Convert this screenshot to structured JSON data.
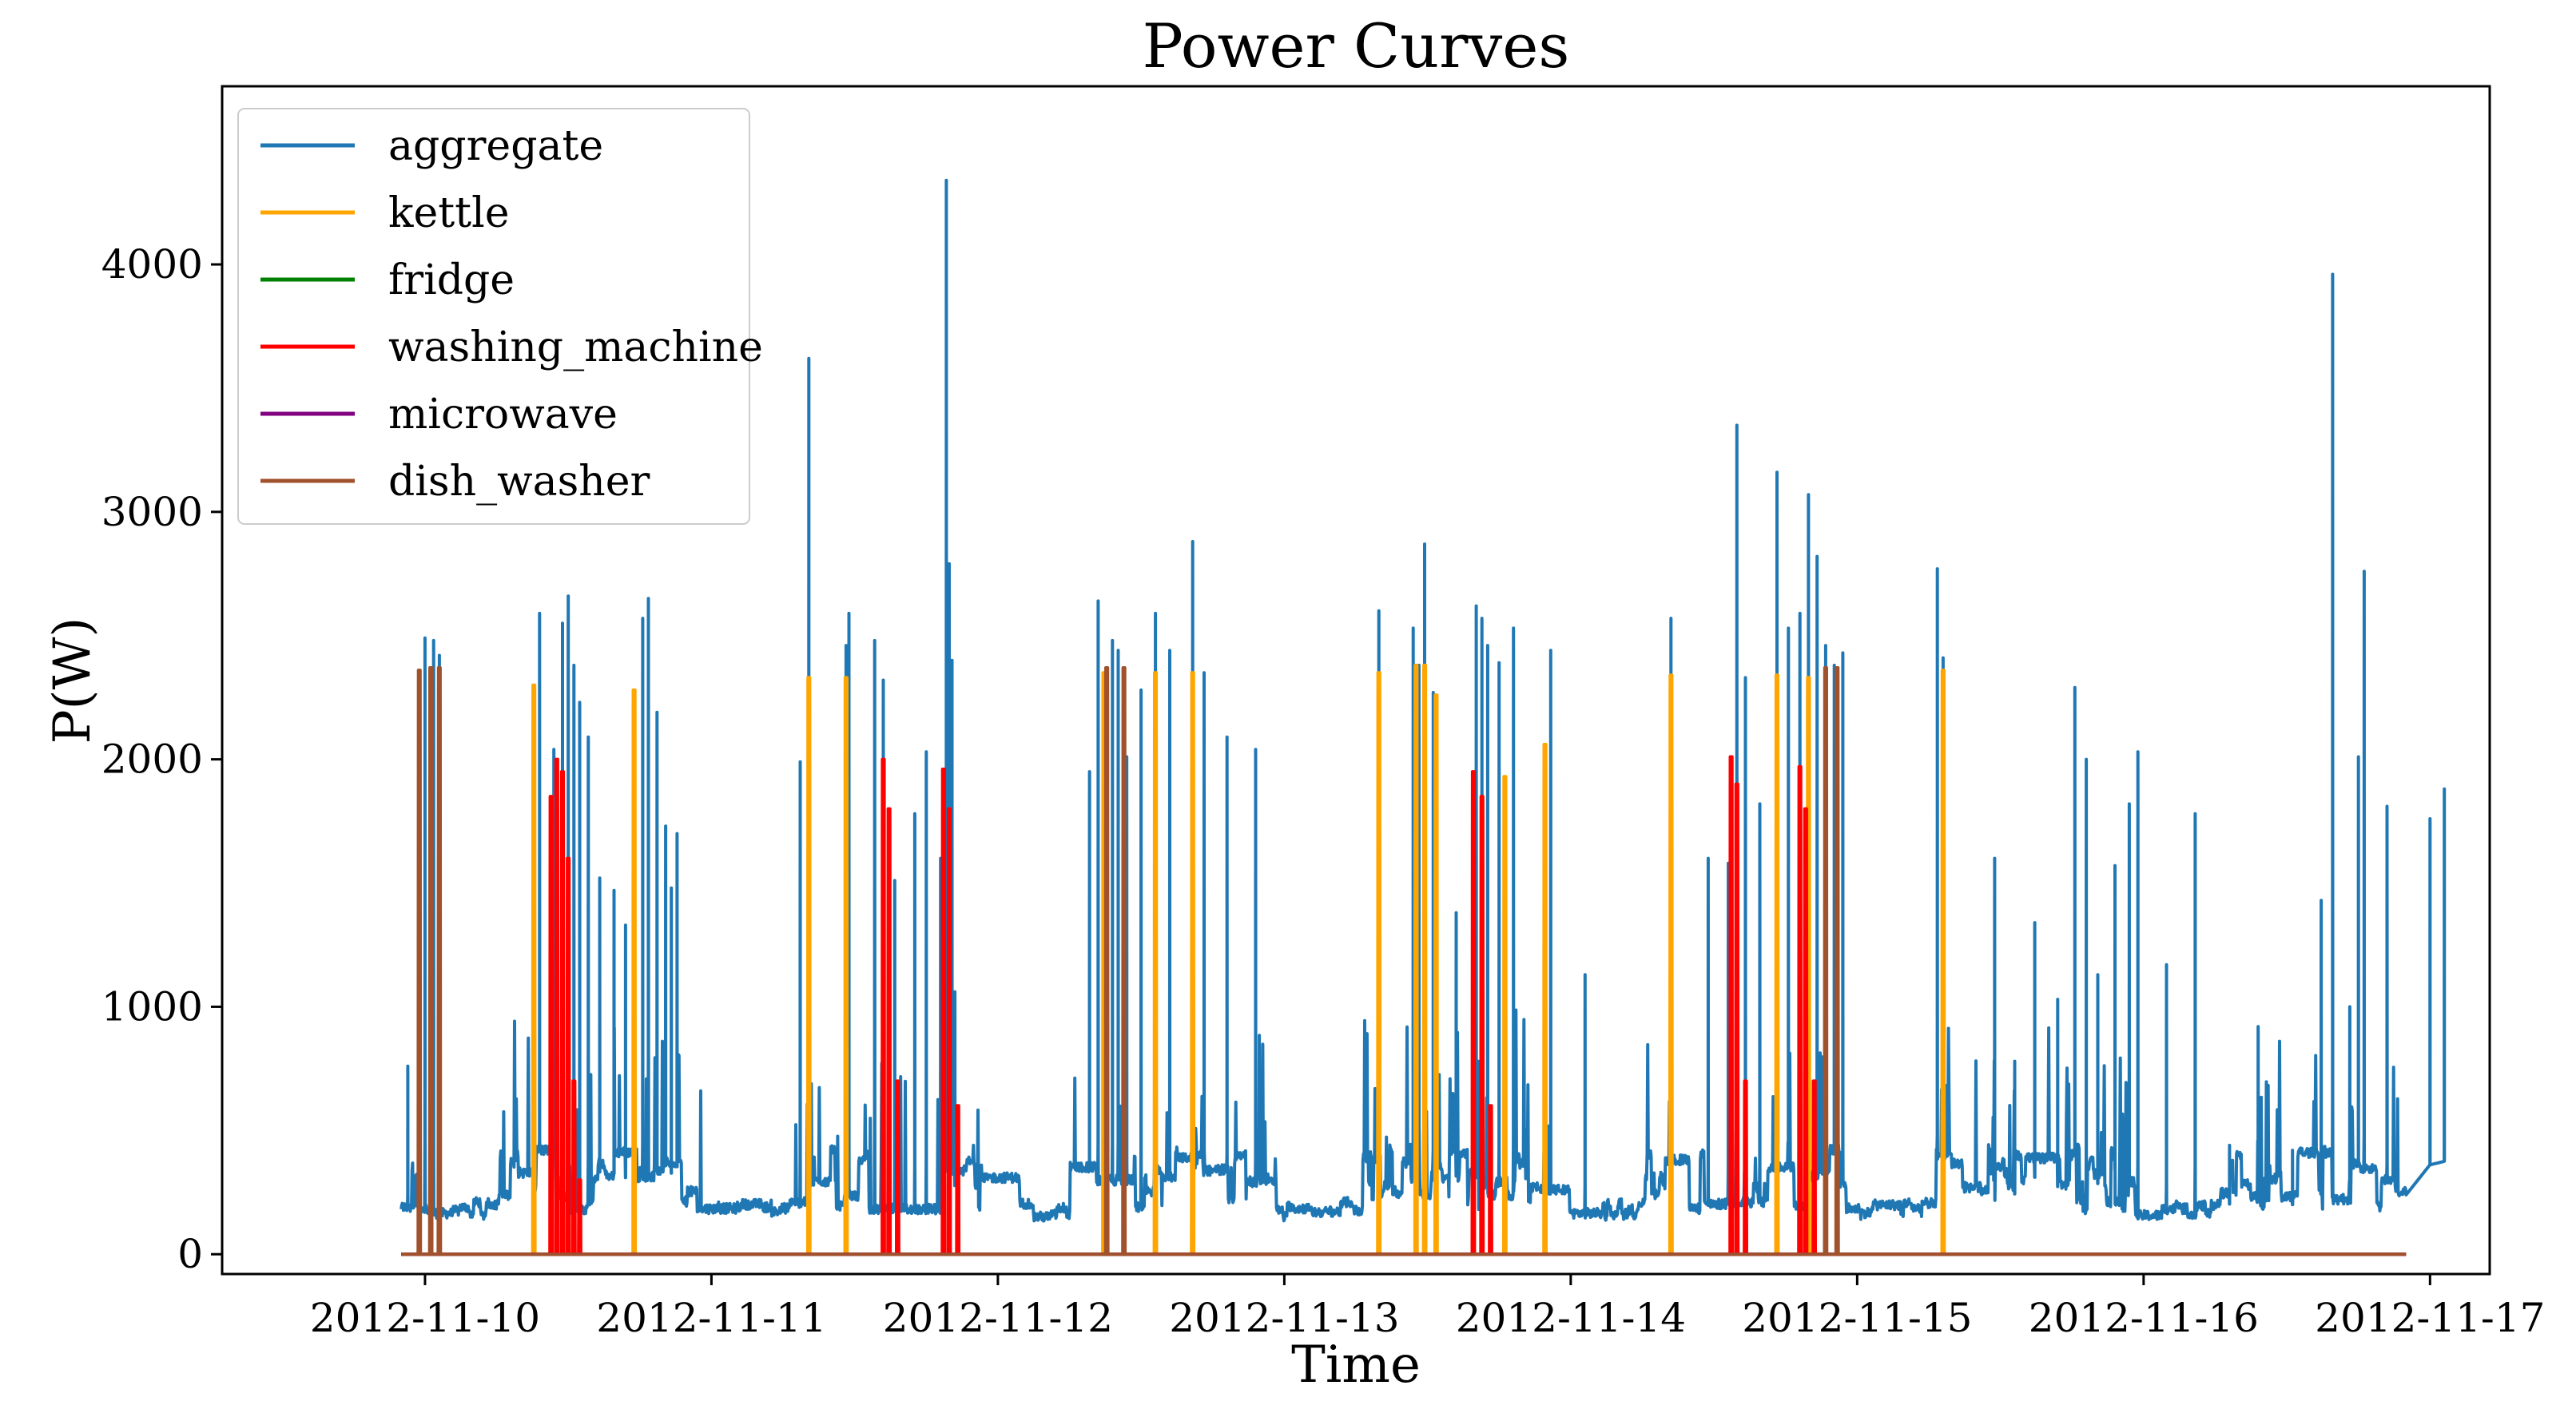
{
  "chart_data": {
    "type": "line",
    "title": "Power Curves",
    "xlabel": "Time",
    "ylabel": "P(W)",
    "xlim": [
      "2012-11-09 07:00",
      "2012-11-17 05:00"
    ],
    "ylim": [
      -80,
      4720
    ],
    "x_ticks": [
      "2012-11-10",
      "2012-11-11",
      "2012-11-12",
      "2012-11-13",
      "2012-11-14",
      "2012-11-15",
      "2012-11-16",
      "2012-11-17"
    ],
    "y_ticks": [
      0,
      1000,
      2000,
      3000,
      4000
    ],
    "legend_position": "upper-left",
    "grid": false,
    "series": [
      {
        "name": "aggregate",
        "color": "#1f77b4",
        "base_level_w": 190,
        "spikes": [
          [
            -0.06,
            760
          ],
          [
            -0.02,
            620
          ],
          [
            0.0,
            2490
          ],
          [
            0.03,
            2480
          ],
          [
            0.05,
            2420
          ],
          [
            0.4,
            2590
          ],
          [
            0.45,
            2040
          ],
          [
            0.48,
            2550
          ],
          [
            0.5,
            2660
          ],
          [
            0.52,
            2380
          ],
          [
            0.54,
            2230
          ],
          [
            0.57,
            2090
          ],
          [
            0.61,
            1520
          ],
          [
            0.66,
            1470
          ],
          [
            0.7,
            1330
          ],
          [
            0.73,
            2130
          ],
          [
            0.76,
            2570
          ],
          [
            0.78,
            2650
          ],
          [
            0.81,
            2190
          ],
          [
            0.84,
            1730
          ],
          [
            0.86,
            1480
          ],
          [
            0.88,
            1700
          ],
          [
            1.31,
            1990
          ],
          [
            1.34,
            3620
          ],
          [
            1.47,
            2460
          ],
          [
            1.48,
            2590
          ],
          [
            1.57,
            2480
          ],
          [
            1.6,
            2320
          ],
          [
            1.64,
            1510
          ],
          [
            1.71,
            1780
          ],
          [
            1.75,
            2030
          ],
          [
            1.8,
            1600
          ],
          [
            1.82,
            4340
          ],
          [
            1.83,
            2790
          ],
          [
            1.84,
            2400
          ],
          [
            1.85,
            1060
          ],
          [
            2.32,
            1950
          ],
          [
            2.35,
            2640
          ],
          [
            2.37,
            2200
          ],
          [
            2.4,
            2480
          ],
          [
            2.42,
            2440
          ],
          [
            2.45,
            2010
          ],
          [
            2.5,
            2280
          ],
          [
            2.55,
            2590
          ],
          [
            2.6,
            2440
          ],
          [
            2.68,
            2880
          ],
          [
            2.72,
            2350
          ],
          [
            2.8,
            2090
          ],
          [
            2.9,
            2040
          ],
          [
            3.33,
            2600
          ],
          [
            3.45,
            2530
          ],
          [
            3.47,
            2380
          ],
          [
            3.49,
            2870
          ],
          [
            3.52,
            2270
          ],
          [
            3.6,
            1380
          ],
          [
            3.67,
            2620
          ],
          [
            3.69,
            2570
          ],
          [
            3.71,
            2460
          ],
          [
            3.75,
            2390
          ],
          [
            3.77,
            1920
          ],
          [
            3.8,
            2530
          ],
          [
            3.91,
            1370
          ],
          [
            3.93,
            2440
          ],
          [
            4.05,
            1130
          ],
          [
            4.35,
            2570
          ],
          [
            4.48,
            1600
          ],
          [
            4.55,
            1580
          ],
          [
            4.58,
            3350
          ],
          [
            4.61,
            2330
          ],
          [
            4.66,
            1820
          ],
          [
            4.72,
            3160
          ],
          [
            4.76,
            2530
          ],
          [
            4.8,
            2590
          ],
          [
            4.83,
            3070
          ],
          [
            4.86,
            2820
          ],
          [
            4.89,
            2460
          ],
          [
            4.92,
            2380
          ],
          [
            4.95,
            2430
          ],
          [
            5.28,
            2770
          ],
          [
            5.3,
            2410
          ],
          [
            5.48,
            1600
          ],
          [
            5.55,
            780
          ],
          [
            5.62,
            1340
          ],
          [
            5.7,
            1030
          ],
          [
            5.76,
            2290
          ],
          [
            5.8,
            2000
          ],
          [
            5.84,
            1130
          ],
          [
            5.9,
            1570
          ],
          [
            5.95,
            1820
          ],
          [
            5.98,
            2030
          ],
          [
            6.08,
            1170
          ],
          [
            6.18,
            1780
          ],
          [
            6.3,
            440
          ],
          [
            6.4,
            920
          ],
          [
            6.52,
            420
          ],
          [
            6.62,
            1430
          ],
          [
            6.66,
            3960
          ],
          [
            6.72,
            1000
          ],
          [
            6.75,
            2010
          ],
          [
            6.77,
            2760
          ],
          [
            6.85,
            1810
          ],
          [
            7.0,
            1760
          ],
          [
            7.05,
            1880
          ]
        ]
      },
      {
        "name": "kettle",
        "color": "#ffa500",
        "spikes": [
          [
            0.38,
            2300
          ],
          [
            0.73,
            2280
          ],
          [
            1.34,
            2330
          ],
          [
            1.47,
            2330
          ],
          [
            2.37,
            2350
          ],
          [
            2.55,
            2350
          ],
          [
            2.68,
            2350
          ],
          [
            3.33,
            2350
          ],
          [
            3.46,
            2380
          ],
          [
            3.49,
            2380
          ],
          [
            3.53,
            2260
          ],
          [
            3.77,
            1930
          ],
          [
            3.91,
            2060
          ],
          [
            4.35,
            2340
          ],
          [
            4.72,
            2340
          ],
          [
            4.83,
            2330
          ],
          [
            5.3,
            2360
          ]
        ]
      },
      {
        "name": "fridge",
        "color": "#008000",
        "spikes": []
      },
      {
        "name": "washing_machine",
        "color": "#ff0000",
        "spikes": [
          [
            0.44,
            1850
          ],
          [
            0.46,
            2000
          ],
          [
            0.48,
            1950
          ],
          [
            0.5,
            1600
          ],
          [
            0.52,
            700
          ],
          [
            0.54,
            300
          ],
          [
            1.6,
            2000
          ],
          [
            1.62,
            1800
          ],
          [
            1.65,
            700
          ],
          [
            1.81,
            1960
          ],
          [
            1.83,
            1800
          ],
          [
            1.86,
            600
          ],
          [
            3.66,
            1950
          ],
          [
            3.69,
            1850
          ],
          [
            3.72,
            600
          ],
          [
            4.56,
            2010
          ],
          [
            4.58,
            1900
          ],
          [
            4.61,
            700
          ],
          [
            4.8,
            1970
          ],
          [
            4.82,
            1800
          ],
          [
            4.85,
            700
          ]
        ]
      },
      {
        "name": "microwave",
        "color": "#800080",
        "spikes": []
      },
      {
        "name": "dish_washer",
        "color": "#a0522d",
        "spikes": [
          [
            -0.02,
            2360
          ],
          [
            0.02,
            2370
          ],
          [
            0.05,
            2370
          ],
          [
            2.38,
            2370
          ],
          [
            2.44,
            2370
          ],
          [
            4.89,
            2370
          ],
          [
            4.93,
            2370
          ]
        ]
      }
    ]
  }
}
